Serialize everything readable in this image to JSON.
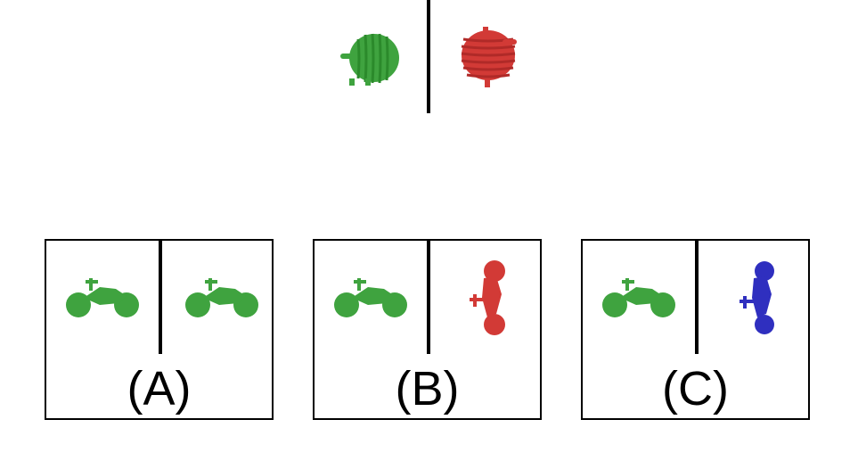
{
  "colors": {
    "green": "#3fa33f",
    "red": "#d23a36",
    "blue": "#2f2fbf",
    "line": "#000000"
  },
  "example": {
    "left": {
      "icon": "yarn-spool-icon",
      "color": "green"
    },
    "right": {
      "icon": "yarn-spool-icon",
      "color": "red"
    }
  },
  "options": [
    {
      "label": "(A)",
      "left": {
        "icon": "motorcycle-icon",
        "color": "green",
        "view": "side"
      },
      "right": {
        "icon": "motorcycle-icon",
        "color": "green",
        "view": "side"
      }
    },
    {
      "label": "(B)",
      "left": {
        "icon": "motorcycle-icon",
        "color": "green",
        "view": "side"
      },
      "right": {
        "icon": "motorcycle-icon",
        "color": "red",
        "view": "rotated"
      }
    },
    {
      "label": "(C)",
      "left": {
        "icon": "motorcycle-icon",
        "color": "green",
        "view": "side"
      },
      "right": {
        "icon": "motorcycle-icon",
        "color": "blue",
        "view": "rotated"
      }
    }
  ]
}
